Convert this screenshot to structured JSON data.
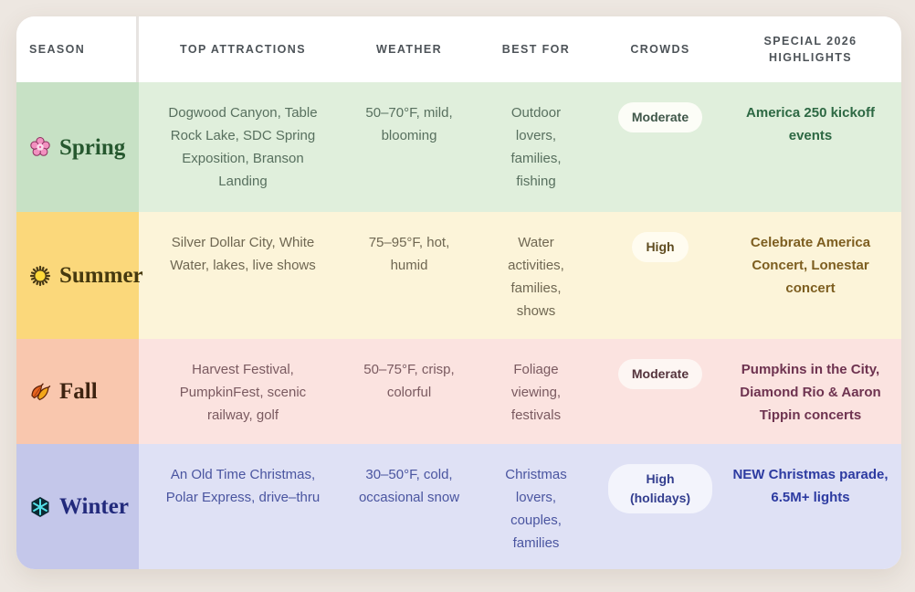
{
  "table": {
    "columns": [
      {
        "key": "season",
        "label": "SEASON"
      },
      {
        "key": "attractions",
        "label": "TOP ATTRACTIONS"
      },
      {
        "key": "weather",
        "label": "WEATHER"
      },
      {
        "key": "best_for",
        "label": "BEST FOR"
      },
      {
        "key": "crowds",
        "label": "CROWDS"
      },
      {
        "key": "highlights",
        "label": "SPECIAL 2026 HIGHLIGHTS"
      }
    ],
    "rows": [
      {
        "season": "Spring",
        "icon": "blossom-icon",
        "attractions": "Dogwood Canyon, Table Rock Lake, SDC Spring Exposition, Branson Landing",
        "weather": "50–70°F, mild, blooming",
        "best_for": "Outdoor lovers, families, fishing",
        "crowds": "Moderate",
        "highlights": "America 250 kickoff events",
        "colors": {
          "cell_bg": "#c7e1c5",
          "row_bg": "#e0efdc",
          "text": "#58705f",
          "season": "#26582f",
          "highlight": "#2d6843",
          "pill_bg": "#fcfdf7",
          "pill_text": "#3f5649"
        }
      },
      {
        "season": "Summer",
        "icon": "sun-icon",
        "attractions": "Silver Dollar City, White Water, lakes, live shows",
        "weather": "75–95°F, hot, humid",
        "best_for": "Water activities, families, shows",
        "crowds": "High",
        "highlights": "Celebrate America Concert, Lonestar concert",
        "colors": {
          "cell_bg": "#fbd87b",
          "row_bg": "#fcf4d9",
          "text": "#6f6752",
          "season": "#46390f",
          "highlight": "#7d5e20",
          "pill_bg": "#fffcf0",
          "pill_text": "#5f4c20"
        }
      },
      {
        "season": "Fall",
        "icon": "leaf-icon",
        "attractions": "Harvest Festival, PumpkinFest, scenic railway, golf",
        "weather": "50–75°F, crisp, colorful",
        "best_for": "Foliage viewing, festivals",
        "crowds": "Moderate",
        "highlights": "Pumpkins in the City, Diamond Rio & Aaron Tippin concerts",
        "colors": {
          "cell_bg": "#f9c7ae",
          "row_bg": "#fbe3e0",
          "text": "#7a5a60",
          "season": "#3d2310",
          "highlight": "#6e3350",
          "pill_bg": "#fdf6f3",
          "pill_text": "#53333c"
        }
      },
      {
        "season": "Winter",
        "icon": "snowflake-icon",
        "attractions": "An Old Time Christmas, Polar Express, drive–thru",
        "weather": "30–50°F, cold, occasional snow",
        "best_for": "Christmas lovers, couples, families",
        "crowds": "High (holidays)",
        "highlights": "NEW Christmas parade, 6.5M+ lights",
        "colors": {
          "cell_bg": "#c4c7ea",
          "row_bg": "#dfe1f5",
          "text": "#4a55a0",
          "season": "#222a7c",
          "highlight": "#2d3ba1",
          "pill_bg": "#f3f4fc",
          "pill_text": "#333e8f"
        }
      }
    ]
  }
}
